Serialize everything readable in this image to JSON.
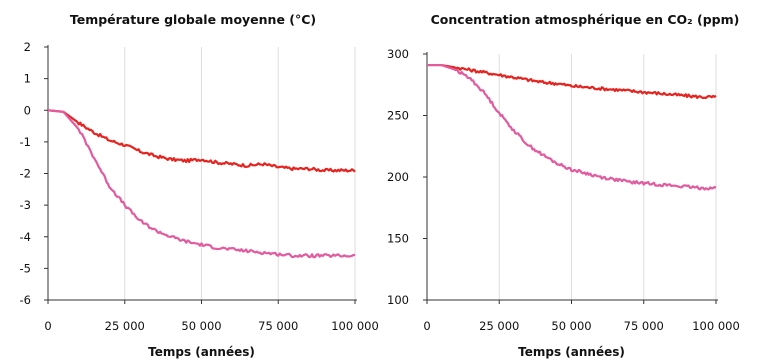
{
  "chart_data": [
    {
      "type": "line",
      "title": "Température globale moyenne (°C)",
      "xlabel": "Temps (années)",
      "ylabel": "",
      "xlim": [
        0,
        100000
      ],
      "ylim": [
        -6,
        2
      ],
      "x_ticks": [
        0,
        25000,
        50000,
        75000,
        100000
      ],
      "x_tick_labels": [
        "0",
        "25 000",
        "50 000",
        "75 000",
        "100 000"
      ],
      "y_ticks": [
        -6,
        -5,
        -4,
        -3,
        -2,
        -1,
        0,
        1,
        2
      ],
      "y_tick_labels": [
        "-6",
        "-5",
        "-4",
        "-3",
        "-2",
        "-1",
        "0",
        "1",
        "2"
      ],
      "grid": "vertical",
      "series": [
        {
          "color": "#e8231f",
          "x": [
            0,
            5000,
            10000,
            15000,
            20000,
            25000,
            30000,
            35000,
            40000,
            45000,
            50000,
            55000,
            60000,
            65000,
            70000,
            75000,
            80000,
            85000,
            90000,
            95000,
            100000
          ],
          "values": [
            0,
            -0.05,
            -0.4,
            -0.7,
            -0.95,
            -1.1,
            -1.3,
            -1.45,
            -1.55,
            -1.6,
            -1.55,
            -1.65,
            -1.7,
            -1.75,
            -1.7,
            -1.8,
            -1.85,
            -1.85,
            -1.9,
            -1.9,
            -1.9
          ]
        },
        {
          "color": "#e35a9e",
          "x": [
            0,
            5000,
            10000,
            15000,
            20000,
            25000,
            30000,
            35000,
            40000,
            45000,
            50000,
            55000,
            60000,
            65000,
            70000,
            75000,
            80000,
            85000,
            90000,
            95000,
            100000
          ],
          "values": [
            0,
            -0.05,
            -0.6,
            -1.5,
            -2.4,
            -3.0,
            -3.5,
            -3.8,
            -4.0,
            -4.15,
            -4.25,
            -4.35,
            -4.4,
            -4.45,
            -4.5,
            -4.55,
            -4.6,
            -4.6,
            -4.6,
            -4.6,
            -4.6
          ]
        }
      ]
    },
    {
      "type": "line",
      "title": "Concentration atmosphérique en CO₂ (ppm)",
      "xlabel": "Temps (années)",
      "ylabel": "",
      "xlim": [
        0,
        100000
      ],
      "ylim": [
        100,
        300
      ],
      "x_ticks": [
        0,
        25000,
        50000,
        75000,
        100000
      ],
      "x_tick_labels": [
        "0",
        "25 000",
        "50 000",
        "75 000",
        "100 000"
      ],
      "y_ticks": [
        100,
        150,
        200,
        250,
        300
      ],
      "y_tick_labels": [
        "100",
        "150",
        "200",
        "250",
        "300"
      ],
      "grid": "vertical",
      "series": [
        {
          "color": "#e8231f",
          "x": [
            0,
            5000,
            10000,
            15000,
            20000,
            25000,
            30000,
            35000,
            40000,
            45000,
            50000,
            55000,
            60000,
            65000,
            70000,
            75000,
            80000,
            85000,
            90000,
            95000,
            100000
          ],
          "values": [
            291,
            291,
            289,
            287,
            285,
            283,
            281,
            279,
            277,
            276,
            274,
            273,
            272,
            271,
            270,
            269,
            268,
            267,
            266,
            265,
            265
          ]
        },
        {
          "color": "#e35a9e",
          "x": [
            0,
            5000,
            10000,
            15000,
            20000,
            25000,
            30000,
            35000,
            40000,
            45000,
            50000,
            55000,
            60000,
            65000,
            70000,
            75000,
            80000,
            85000,
            90000,
            95000,
            100000
          ],
          "values": [
            291,
            291,
            287,
            280,
            268,
            252,
            238,
            226,
            218,
            211,
            206,
            203,
            200,
            198,
            196,
            195,
            194,
            193,
            192,
            191,
            191
          ]
        }
      ]
    }
  ]
}
